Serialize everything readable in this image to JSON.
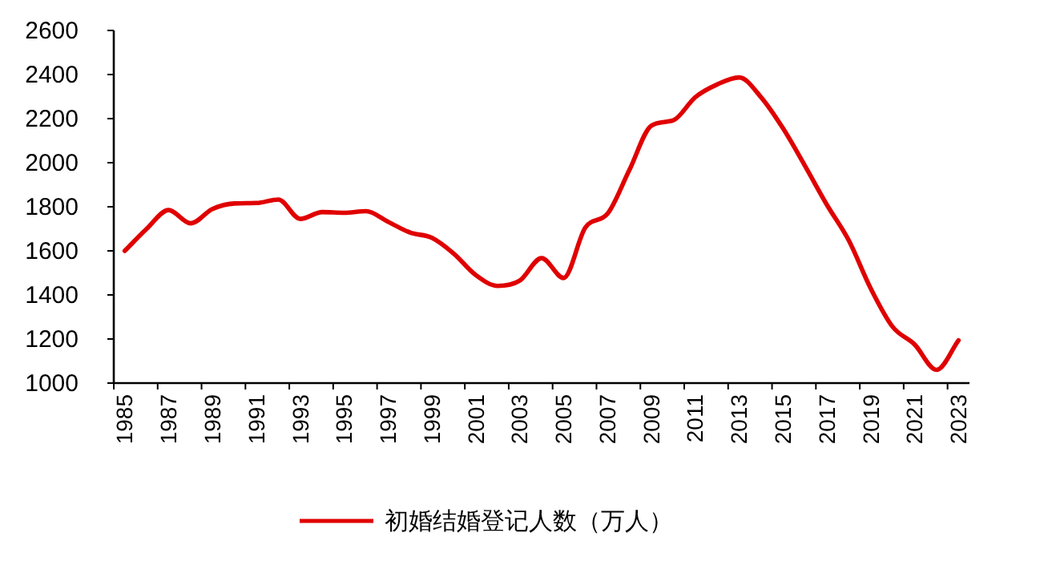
{
  "chart_data": {
    "type": "line",
    "categories": [
      "1985",
      null,
      "1987",
      null,
      "1989",
      null,
      "1991",
      null,
      "1993",
      null,
      "1995",
      null,
      "1997",
      null,
      "1999",
      null,
      "2001",
      null,
      "2003",
      null,
      "2005",
      null,
      "2007",
      null,
      "2009",
      null,
      "2011",
      null,
      "2013",
      null,
      "2015",
      null,
      "2017",
      null,
      "2019",
      null,
      "2021",
      null,
      "2023"
    ],
    "series": [
      {
        "name": "初婚结婚登记人数（万人）",
        "color": "#e00000",
        "values": [
          1600,
          1700,
          1785,
          1725,
          1790,
          1815,
          1817,
          1833,
          1745,
          1776,
          1773,
          1780,
          1732,
          1683,
          1659,
          1587,
          1490,
          1441,
          1465,
          1567,
          1477,
          1707,
          1768,
          1967,
          2168,
          2192,
          2297,
          2355,
          2387,
          2297,
          2156,
          1986,
          1809,
          1647,
          1429,
          1255,
          1175,
          1060,
          1194
        ]
      }
    ],
    "ylim": [
      1000,
      2600
    ],
    "yticks": [
      1000,
      1200,
      1400,
      1600,
      1800,
      2000,
      2200,
      2400,
      2600
    ],
    "legend": "bottom"
  }
}
